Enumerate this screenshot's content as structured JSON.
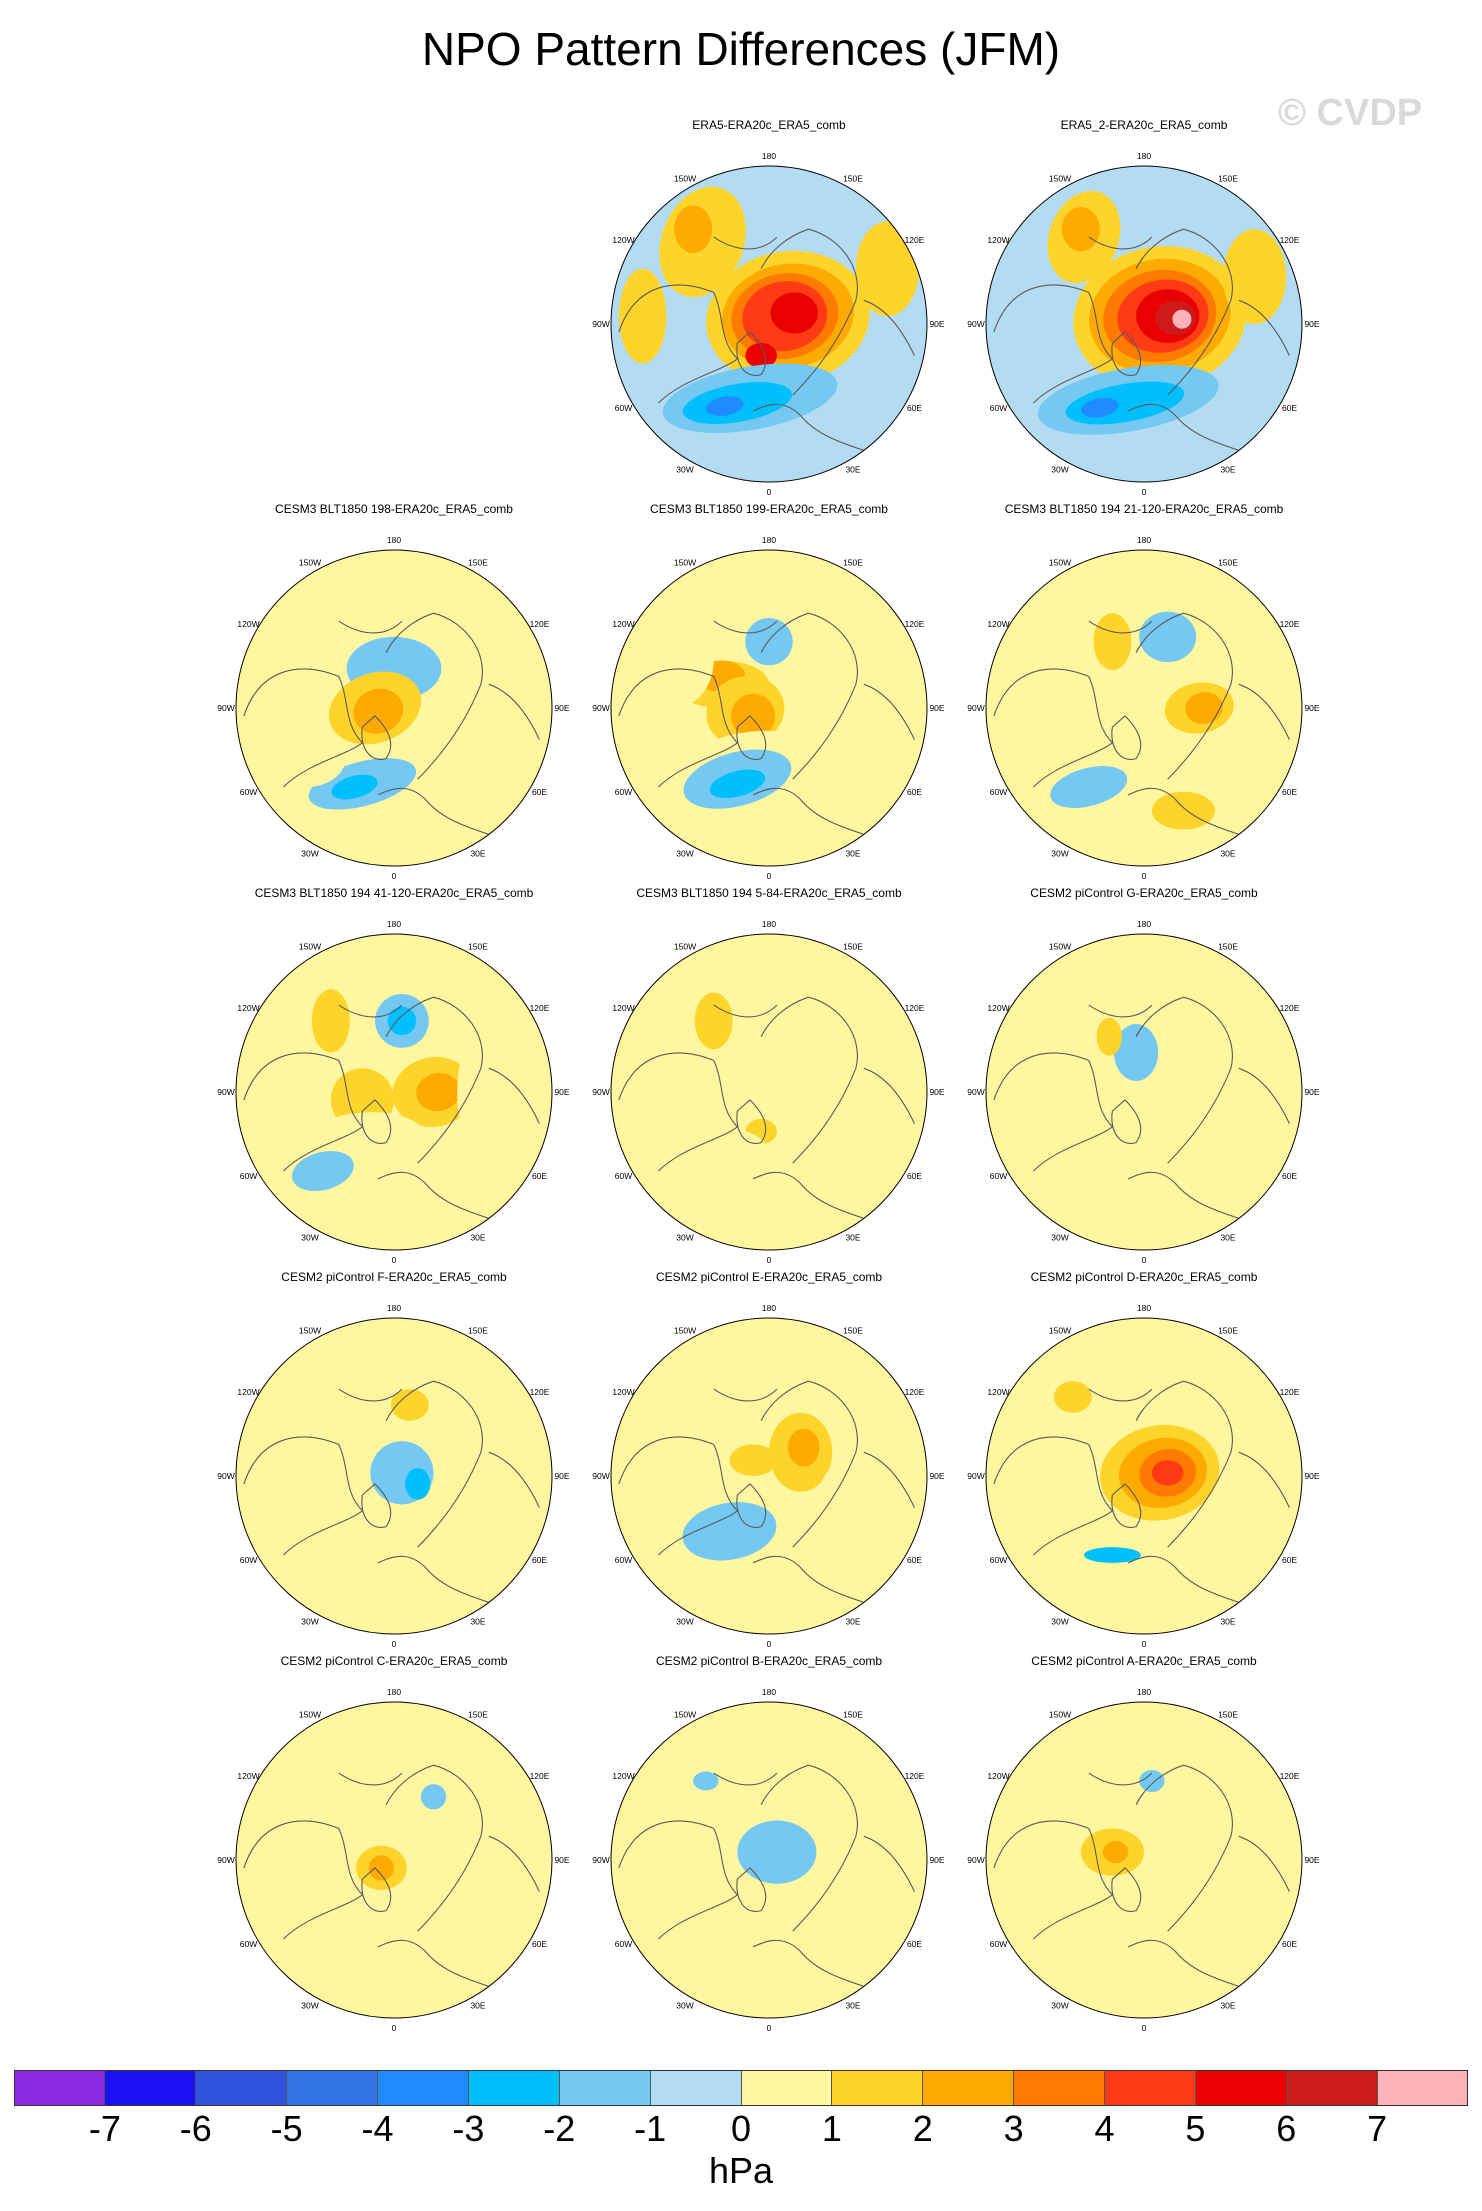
{
  "title": "NPO Pattern Differences (JFM)",
  "watermark": "© CVDP",
  "colors": {
    "ocean_base": "#b3dcf2",
    "land_line": "#5a5a5a",
    "levels": [
      "#8a2be2",
      "#1a10f5",
      "#2f52e0",
      "#3275e8",
      "#1e8cff",
      "#00bfff",
      "#74c8f2",
      "#b3dcf2",
      "#fff7a0",
      "#ffd42a",
      "#ffaa00",
      "#ff7a00",
      "#ff3a14",
      "#ea0000",
      "#cf1a1a",
      "#ffb3b8"
    ]
  },
  "map": {
    "projection": "North polar stereographic",
    "lon_labels": [
      "180",
      "150E",
      "120E",
      "90E",
      "60E",
      "30E",
      "0",
      "30W",
      "60W",
      "90W",
      "120W",
      "150W"
    ]
  },
  "panels": [
    {
      "title": "ERA5-ERA20c_ERA5_comb",
      "base": 0,
      "blobs": [
        {
          "u": -0.42,
          "v": -0.52,
          "rx": 0.26,
          "ry": 0.36,
          "lvl": 1,
          "rot": 20
        },
        {
          "u": -0.48,
          "v": -0.6,
          "rx": 0.12,
          "ry": 0.15,
          "lvl": 2,
          "rot": 0
        },
        {
          "u": 0.12,
          "v": -0.04,
          "rx": 0.52,
          "ry": 0.42,
          "lvl": 1,
          "rot": -10
        },
        {
          "u": 0.12,
          "v": -0.05,
          "rx": 0.42,
          "ry": 0.33,
          "lvl": 2,
          "rot": -10
        },
        {
          "u": 0.1,
          "v": -0.05,
          "rx": 0.34,
          "ry": 0.27,
          "lvl": 3,
          "rot": -10
        },
        {
          "u": 0.1,
          "v": -0.05,
          "rx": 0.27,
          "ry": 0.22,
          "lvl": 4,
          "rot": -10
        },
        {
          "u": 0.16,
          "v": -0.07,
          "rx": 0.15,
          "ry": 0.13,
          "lvl": 5,
          "rot": 0
        },
        {
          "u": -0.05,
          "v": 0.2,
          "rx": 0.1,
          "ry": 0.08,
          "lvl": 5,
          "rot": 0
        },
        {
          "u": -0.12,
          "v": 0.47,
          "rx": 0.56,
          "ry": 0.2,
          "lvl": -1,
          "rot": -10
        },
        {
          "u": -0.2,
          "v": 0.5,
          "rx": 0.35,
          "ry": 0.12,
          "lvl": -2,
          "rot": -10
        },
        {
          "u": -0.28,
          "v": 0.52,
          "rx": 0.12,
          "ry": 0.06,
          "lvl": -3,
          "rot": -10
        },
        {
          "u": 0.75,
          "v": -0.35,
          "rx": 0.2,
          "ry": 0.3,
          "lvl": 1,
          "rot": 0
        },
        {
          "u": -0.8,
          "v": -0.05,
          "rx": 0.15,
          "ry": 0.3,
          "lvl": 1,
          "rot": 0
        }
      ]
    },
    {
      "title": "ERA5_2-ERA20c_ERA5_comb",
      "base": 0,
      "blobs": [
        {
          "u": -0.38,
          "v": -0.55,
          "rx": 0.22,
          "ry": 0.3,
          "lvl": 1,
          "rot": 20
        },
        {
          "u": -0.4,
          "v": -0.6,
          "rx": 0.12,
          "ry": 0.14,
          "lvl": 2,
          "rot": 0
        },
        {
          "u": 0.1,
          "v": -0.04,
          "rx": 0.55,
          "ry": 0.45,
          "lvl": 1,
          "rot": -10
        },
        {
          "u": 0.1,
          "v": -0.05,
          "rx": 0.45,
          "ry": 0.36,
          "lvl": 2,
          "rot": -10
        },
        {
          "u": 0.1,
          "v": -0.05,
          "rx": 0.36,
          "ry": 0.29,
          "lvl": 3,
          "rot": -10
        },
        {
          "u": 0.12,
          "v": -0.05,
          "rx": 0.29,
          "ry": 0.23,
          "lvl": 4,
          "rot": -10
        },
        {
          "u": 0.15,
          "v": -0.05,
          "rx": 0.2,
          "ry": 0.17,
          "lvl": 5,
          "rot": 0
        },
        {
          "u": 0.2,
          "v": -0.04,
          "rx": 0.13,
          "ry": 0.11,
          "lvl": 6,
          "rot": 0
        },
        {
          "u": 0.24,
          "v": -0.03,
          "rx": 0.06,
          "ry": 0.06,
          "lvl": 7,
          "rot": 0
        },
        {
          "u": -0.1,
          "v": 0.48,
          "rx": 0.58,
          "ry": 0.2,
          "lvl": -1,
          "rot": -10
        },
        {
          "u": -0.12,
          "v": 0.5,
          "rx": 0.38,
          "ry": 0.12,
          "lvl": -2,
          "rot": -10
        },
        {
          "u": -0.28,
          "v": 0.53,
          "rx": 0.12,
          "ry": 0.06,
          "lvl": -3,
          "rot": -10
        },
        {
          "u": 0.7,
          "v": -0.3,
          "rx": 0.2,
          "ry": 0.3,
          "lvl": 1,
          "rot": 0
        }
      ]
    },
    {
      "title": "CESM3 BLT1850 198-ERA20c_ERA5_comb",
      "base": 1,
      "blobs": [
        {
          "u": 0.25,
          "v": -0.45,
          "rx": 0.35,
          "ry": 0.25,
          "lvl": 0,
          "rot": 30
        },
        {
          "u": -0.45,
          "v": -0.5,
          "rx": 0.25,
          "ry": 0.18,
          "lvl": 0,
          "rot": 0
        },
        {
          "u": 0.0,
          "v": -0.25,
          "rx": 0.3,
          "ry": 0.2,
          "lvl": -1,
          "rot": 0
        },
        {
          "u": 0.75,
          "v": 0.1,
          "rx": 0.25,
          "ry": 0.55,
          "lvl": 0,
          "rot": 10
        },
        {
          "u": -0.15,
          "v": 0.5,
          "rx": 0.55,
          "ry": 0.22,
          "lvl": 0,
          "rot": -15
        },
        {
          "u": -0.2,
          "v": 0.48,
          "rx": 0.35,
          "ry": 0.14,
          "lvl": -1,
          "rot": -15
        },
        {
          "u": -0.25,
          "v": 0.5,
          "rx": 0.15,
          "ry": 0.07,
          "lvl": -2,
          "rot": -15
        },
        {
          "u": -0.12,
          "v": 0.0,
          "rx": 0.3,
          "ry": 0.22,
          "lvl": 1,
          "rot": -20
        },
        {
          "u": -0.1,
          "v": 0.02,
          "rx": 0.16,
          "ry": 0.14,
          "lvl": 2,
          "rot": -20
        },
        {
          "u": -0.55,
          "v": 0.3,
          "rx": 0.25,
          "ry": 0.2,
          "lvl": 0,
          "rot": 0
        }
      ]
    },
    {
      "title": "CESM3 BLT1850 199-ERA20c_ERA5_comb",
      "base": 1,
      "blobs": [
        {
          "u": 0.0,
          "v": -0.4,
          "rx": 0.3,
          "ry": 0.3,
          "lvl": 0,
          "rot": 0
        },
        {
          "u": 0.0,
          "v": -0.42,
          "rx": 0.15,
          "ry": 0.15,
          "lvl": -1,
          "rot": 0
        },
        {
          "u": -0.3,
          "v": -0.15,
          "rx": 0.3,
          "ry": 0.15,
          "lvl": 1,
          "rot": 0
        },
        {
          "u": -0.3,
          "v": -0.2,
          "rx": 0.15,
          "ry": 0.1,
          "lvl": 2,
          "rot": 0
        },
        {
          "u": -0.15,
          "v": 0.02,
          "rx": 0.25,
          "ry": 0.22,
          "lvl": 1,
          "rot": -20
        },
        {
          "u": -0.1,
          "v": 0.05,
          "rx": 0.14,
          "ry": 0.14,
          "lvl": 2,
          "rot": -20
        },
        {
          "u": -0.2,
          "v": 0.45,
          "rx": 0.55,
          "ry": 0.28,
          "lvl": 0,
          "rot": -15
        },
        {
          "u": -0.2,
          "v": 0.45,
          "rx": 0.35,
          "ry": 0.17,
          "lvl": -1,
          "rot": -15
        },
        {
          "u": -0.2,
          "v": 0.48,
          "rx": 0.18,
          "ry": 0.08,
          "lvl": -2,
          "rot": -15
        },
        {
          "u": -0.6,
          "v": -0.3,
          "rx": 0.25,
          "ry": 0.3,
          "lvl": 0,
          "rot": 0
        }
      ]
    },
    {
      "title": "CESM3 BLT1850 194 21-120-ERA20c_ERA5_comb",
      "base": 1,
      "blobs": [
        {
          "u": 0.15,
          "v": -0.45,
          "rx": 0.35,
          "ry": 0.28,
          "lvl": 0,
          "rot": 0
        },
        {
          "u": 0.15,
          "v": -0.45,
          "rx": 0.18,
          "ry": 0.16,
          "lvl": -1,
          "rot": 0
        },
        {
          "u": -0.2,
          "v": -0.42,
          "rx": 0.12,
          "ry": 0.18,
          "lvl": 1,
          "rot": 0
        },
        {
          "u": -0.3,
          "v": 0.0,
          "rx": 0.3,
          "ry": 0.2,
          "lvl": 0,
          "rot": 0
        },
        {
          "u": 0.35,
          "v": 0.0,
          "rx": 0.22,
          "ry": 0.16,
          "lvl": 1,
          "rot": -10
        },
        {
          "u": 0.38,
          "v": 0.0,
          "rx": 0.12,
          "ry": 0.1,
          "lvl": 2,
          "rot": -10
        },
        {
          "u": -0.25,
          "v": 0.45,
          "rx": 0.55,
          "ry": 0.3,
          "lvl": 0,
          "rot": -15
        },
        {
          "u": -0.35,
          "v": 0.5,
          "rx": 0.25,
          "ry": 0.12,
          "lvl": -1,
          "rot": -15
        },
        {
          "u": 0.25,
          "v": 0.65,
          "rx": 0.2,
          "ry": 0.12,
          "lvl": 1,
          "rot": 0
        }
      ]
    },
    {
      "title": "CESM3 BLT1850 194 41-120-ERA20c_ERA5_comb",
      "base": 1,
      "blobs": [
        {
          "u": 0.05,
          "v": -0.45,
          "rx": 0.3,
          "ry": 0.3,
          "lvl": 0,
          "rot": 0
        },
        {
          "u": 0.05,
          "v": -0.45,
          "rx": 0.17,
          "ry": 0.17,
          "lvl": -1,
          "rot": 0
        },
        {
          "u": 0.05,
          "v": -0.45,
          "rx": 0.09,
          "ry": 0.09,
          "lvl": -2,
          "rot": 0
        },
        {
          "u": -0.4,
          "v": -0.45,
          "rx": 0.12,
          "ry": 0.2,
          "lvl": 1,
          "rot": 0
        },
        {
          "u": 0.25,
          "v": 0.0,
          "rx": 0.26,
          "ry": 0.22,
          "lvl": 1,
          "rot": -10
        },
        {
          "u": 0.28,
          "v": 0.0,
          "rx": 0.14,
          "ry": 0.12,
          "lvl": 2,
          "rot": -10
        },
        {
          "u": -0.2,
          "v": 0.05,
          "rx": 0.2,
          "ry": 0.2,
          "lvl": 1,
          "rot": 0
        },
        {
          "u": -0.3,
          "v": 0.45,
          "rx": 0.55,
          "ry": 0.3,
          "lvl": 0,
          "rot": -15
        },
        {
          "u": -0.45,
          "v": 0.5,
          "rx": 0.2,
          "ry": 0.12,
          "lvl": -1,
          "rot": -15
        },
        {
          "u": 0.65,
          "v": 0.0,
          "rx": 0.25,
          "ry": 0.5,
          "lvl": 0,
          "rot": 0
        }
      ]
    },
    {
      "title": "CESM3 BLT1850 194 5-84-ERA20c_ERA5_comb",
      "base": 1,
      "blobs": [
        {
          "u": 0.0,
          "v": -0.4,
          "rx": 0.28,
          "ry": 0.25,
          "lvl": 0,
          "rot": 0
        },
        {
          "u": -0.35,
          "v": -0.45,
          "rx": 0.12,
          "ry": 0.18,
          "lvl": 1,
          "rot": 0
        },
        {
          "u": -0.3,
          "v": 0.05,
          "rx": 0.3,
          "ry": 0.2,
          "lvl": 0,
          "rot": 0
        },
        {
          "u": -0.05,
          "v": 0.25,
          "rx": 0.1,
          "ry": 0.08,
          "lvl": 1,
          "rot": 0
        },
        {
          "u": -0.35,
          "v": 0.45,
          "rx": 0.35,
          "ry": 0.2,
          "lvl": 0,
          "rot": -15
        },
        {
          "u": 0.45,
          "v": -0.2,
          "rx": 0.25,
          "ry": 0.35,
          "lvl": 0,
          "rot": 0
        },
        {
          "u": 0.65,
          "v": 0.2,
          "rx": 0.2,
          "ry": 0.3,
          "lvl": 0,
          "rot": 0
        }
      ]
    },
    {
      "title": "CESM2 piControl G-ERA20c_ERA5_comb",
      "base": 1,
      "blobs": [
        {
          "u": 0.0,
          "v": -0.2,
          "rx": 0.35,
          "ry": 0.35,
          "lvl": 0,
          "rot": 0
        },
        {
          "u": -0.1,
          "v": 0.05,
          "rx": 0.45,
          "ry": 0.3,
          "lvl": 0,
          "rot": 0
        },
        {
          "u": -0.05,
          "v": -0.25,
          "rx": 0.14,
          "ry": 0.18,
          "lvl": -1,
          "rot": 0
        },
        {
          "u": 0.25,
          "v": -0.55,
          "rx": 0.2,
          "ry": 0.15,
          "lvl": 0,
          "rot": 0
        },
        {
          "u": -0.5,
          "v": 0.35,
          "rx": 0.2,
          "ry": 0.25,
          "lvl": 0,
          "rot": 0
        },
        {
          "u": 0.55,
          "v": 0.05,
          "rx": 0.2,
          "ry": 0.3,
          "lvl": 0,
          "rot": 0
        },
        {
          "u": -0.22,
          "v": -0.35,
          "rx": 0.08,
          "ry": 0.12,
          "lvl": 1,
          "rot": 0
        }
      ]
    },
    {
      "title": "CESM2 piControl F-ERA20c_ERA5_comb",
      "base": 1,
      "blobs": [
        {
          "u": 0.0,
          "v": -0.1,
          "rx": 0.4,
          "ry": 0.35,
          "lvl": 0,
          "rot": 0
        },
        {
          "u": 0.05,
          "v": -0.02,
          "rx": 0.2,
          "ry": 0.2,
          "lvl": -1,
          "rot": 0
        },
        {
          "u": 0.15,
          "v": 0.05,
          "rx": 0.08,
          "ry": 0.1,
          "lvl": -2,
          "rot": 0
        },
        {
          "u": -0.4,
          "v": 0.2,
          "rx": 0.25,
          "ry": 0.2,
          "lvl": 0,
          "rot": 0
        },
        {
          "u": 0.1,
          "v": -0.45,
          "rx": 0.12,
          "ry": 0.1,
          "lvl": 1,
          "rot": 0
        },
        {
          "u": -0.25,
          "v": 0.55,
          "rx": 0.3,
          "ry": 0.15,
          "lvl": 0,
          "rot": 0
        },
        {
          "u": 0.6,
          "v": 0.4,
          "rx": 0.25,
          "ry": 0.25,
          "lvl": 0,
          "rot": 0
        }
      ]
    },
    {
      "title": "CESM2 piControl E-ERA20c_ERA5_comb",
      "base": 1,
      "blobs": [
        {
          "u": -0.15,
          "v": 0.1,
          "rx": 0.45,
          "ry": 0.3,
          "lvl": 0,
          "rot": -10
        },
        {
          "u": -0.25,
          "v": 0.35,
          "rx": 0.3,
          "ry": 0.18,
          "lvl": -1,
          "rot": -10
        },
        {
          "u": 0.2,
          "v": -0.15,
          "rx": 0.2,
          "ry": 0.25,
          "lvl": 1,
          "rot": 0
        },
        {
          "u": 0.22,
          "v": -0.18,
          "rx": 0.1,
          "ry": 0.12,
          "lvl": 2,
          "rot": 0
        },
        {
          "u": 0.5,
          "v": 0.2,
          "rx": 0.2,
          "ry": 0.3,
          "lvl": 0,
          "rot": 0
        },
        {
          "u": -0.1,
          "v": -0.1,
          "rx": 0.15,
          "ry": 0.1,
          "lvl": 1,
          "rot": 0
        }
      ]
    },
    {
      "title": "CESM2 piControl D-ERA20c_ERA5_comb",
      "base": 1,
      "blobs": [
        {
          "u": 0.0,
          "v": 0.0,
          "rx": 0.55,
          "ry": 0.5,
          "lvl": 0,
          "rot": 0
        },
        {
          "u": 0.1,
          "v": -0.02,
          "rx": 0.38,
          "ry": 0.3,
          "lvl": 1,
          "rot": -10
        },
        {
          "u": 0.12,
          "v": -0.02,
          "rx": 0.28,
          "ry": 0.22,
          "lvl": 2,
          "rot": -10
        },
        {
          "u": 0.15,
          "v": -0.02,
          "rx": 0.18,
          "ry": 0.15,
          "lvl": 3,
          "rot": -10
        },
        {
          "u": 0.15,
          "v": -0.02,
          "rx": 0.1,
          "ry": 0.08,
          "lvl": 4,
          "rot": 0
        },
        {
          "u": -0.15,
          "v": 0.55,
          "rx": 0.4,
          "ry": 0.15,
          "lvl": 0,
          "rot": 0
        },
        {
          "u": -0.2,
          "v": 0.5,
          "rx": 0.18,
          "ry": 0.05,
          "lvl": -2,
          "rot": 0
        },
        {
          "u": -0.45,
          "v": -0.5,
          "rx": 0.12,
          "ry": 0.1,
          "lvl": 1,
          "rot": 0
        }
      ]
    },
    {
      "title": "CESM2 piControl C-ERA20c_ERA5_comb",
      "base": 1,
      "blobs": [
        {
          "u": -0.15,
          "v": 0.15,
          "rx": 0.45,
          "ry": 0.25,
          "lvl": 0,
          "rot": -10
        },
        {
          "u": -0.08,
          "v": 0.05,
          "rx": 0.16,
          "ry": 0.14,
          "lvl": 1,
          "rot": 0
        },
        {
          "u": -0.08,
          "v": 0.05,
          "rx": 0.08,
          "ry": 0.08,
          "lvl": 2,
          "rot": 0
        },
        {
          "u": 0.2,
          "v": -0.35,
          "rx": 0.18,
          "ry": 0.2,
          "lvl": 0,
          "rot": 0
        },
        {
          "u": 0.25,
          "v": -0.4,
          "rx": 0.08,
          "ry": 0.08,
          "lvl": -1,
          "rot": 0
        },
        {
          "u": 0.6,
          "v": 0.1,
          "rx": 0.2,
          "ry": 0.15,
          "lvl": 0,
          "rot": 0
        }
      ]
    },
    {
      "title": "CESM2 piControl B-ERA20c_ERA5_comb",
      "base": 1,
      "blobs": [
        {
          "u": 0.0,
          "v": -0.05,
          "rx": 0.55,
          "ry": 0.3,
          "lvl": 0,
          "rot": 0
        },
        {
          "u": 0.05,
          "v": -0.05,
          "rx": 0.25,
          "ry": 0.2,
          "lvl": -1,
          "rot": 0
        },
        {
          "u": -0.4,
          "v": -0.5,
          "rx": 0.08,
          "ry": 0.06,
          "lvl": -1,
          "rot": 0
        },
        {
          "u": 0.5,
          "v": -0.5,
          "rx": 0.3,
          "ry": 0.25,
          "lvl": 0,
          "rot": 0
        },
        {
          "u": -0.6,
          "v": 0.2,
          "rx": 0.25,
          "ry": 0.18,
          "lvl": 0,
          "rot": 0
        }
      ]
    },
    {
      "title": "CESM2 piControl A-ERA20c_ERA5_comb",
      "base": 1,
      "blobs": [
        {
          "u": 0.0,
          "v": -0.45,
          "rx": 0.25,
          "ry": 0.2,
          "lvl": 0,
          "rot": 0
        },
        {
          "u": 0.05,
          "v": -0.5,
          "rx": 0.08,
          "ry": 0.07,
          "lvl": -1,
          "rot": 0
        },
        {
          "u": -0.1,
          "v": 0.3,
          "rx": 0.55,
          "ry": 0.3,
          "lvl": 0,
          "rot": -10
        },
        {
          "u": -0.2,
          "v": -0.05,
          "rx": 0.2,
          "ry": 0.15,
          "lvl": 1,
          "rot": 0
        },
        {
          "u": -0.18,
          "v": -0.05,
          "rx": 0.08,
          "ry": 0.07,
          "lvl": 2,
          "rot": 0
        },
        {
          "u": -0.5,
          "v": -0.6,
          "rx": 0.15,
          "ry": 0.12,
          "lvl": 0,
          "rot": 0
        }
      ]
    }
  ],
  "colorbar": {
    "ticks": [
      "-7",
      "-6",
      "-5",
      "-4",
      "-3",
      "-2",
      "-1",
      "0",
      "1",
      "2",
      "3",
      "4",
      "5",
      "6",
      "7"
    ],
    "unit": "hPa"
  }
}
